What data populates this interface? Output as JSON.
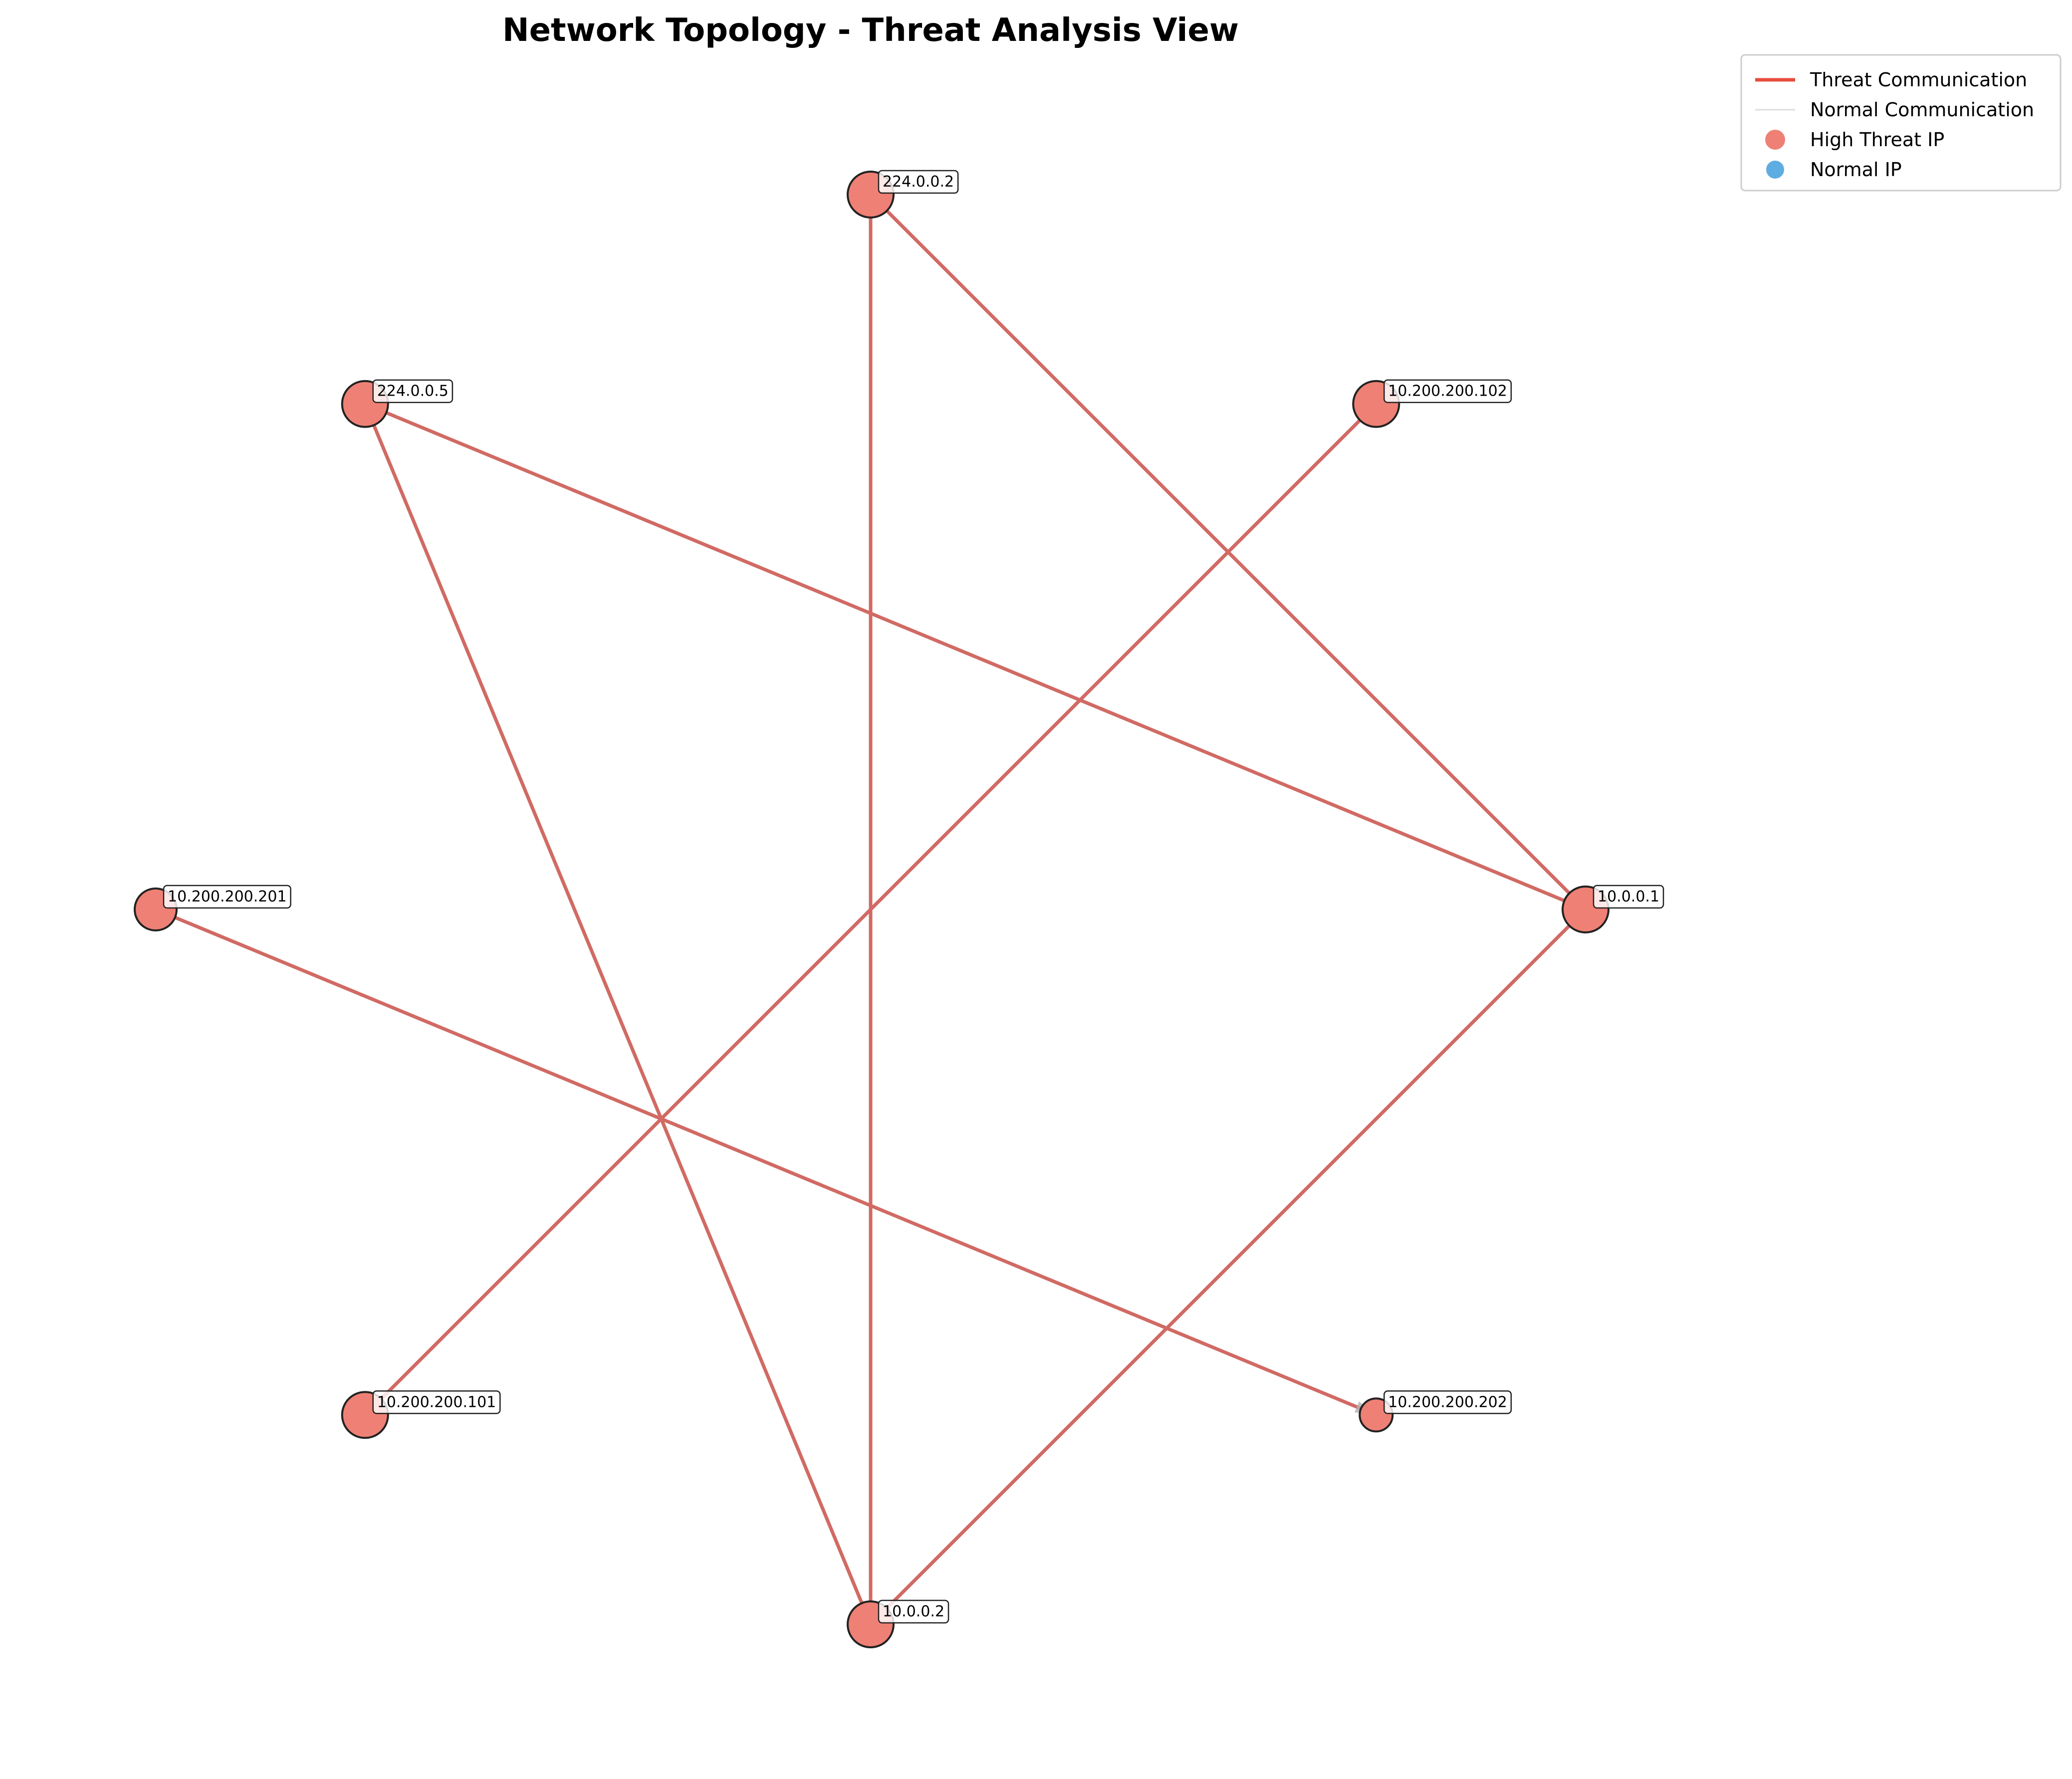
{
  "title": "Network Topology - Threat Analysis View",
  "colors": {
    "threat": "#e74c3c",
    "threat_edge": "#d16a64",
    "normal_edge": "#dddddd",
    "high_threat_node": "#ef8075",
    "normal_node": "#5dade2",
    "node_outline": "#222222"
  },
  "legend": {
    "placement": "top-right",
    "entries": [
      {
        "label": "Threat Communication",
        "kind": "line",
        "color": "#e74c3c"
      },
      {
        "label": "Normal Communication",
        "kind": "line",
        "color": "#dddddd"
      },
      {
        "label": "High Threat IP",
        "kind": "marker",
        "color": "#ef8075"
      },
      {
        "label": "Normal IP",
        "kind": "marker",
        "color": "#5dade2"
      }
    ]
  },
  "nodes": [
    {
      "id": "224.0.0.2",
      "label": "224.0.0.2",
      "type": "high-threat"
    },
    {
      "id": "224.0.0.5",
      "label": "224.0.0.5",
      "type": "high-threat"
    },
    {
      "id": "10.200.200.102",
      "label": "10.200.200.102",
      "type": "high-threat"
    },
    {
      "id": "10.200.200.201",
      "label": "10.200.200.201",
      "type": "high-threat"
    },
    {
      "id": "10.0.0.1",
      "label": "10.0.0.1",
      "type": "high-threat"
    },
    {
      "id": "10.200.200.101",
      "label": "10.200.200.101",
      "type": "high-threat"
    },
    {
      "id": "10.200.200.202",
      "label": "10.200.200.202",
      "type": "high-threat"
    },
    {
      "id": "10.0.0.2",
      "label": "10.0.0.2",
      "type": "high-threat"
    }
  ],
  "edges": [
    {
      "source": "224.0.0.2",
      "target": "10.0.0.1",
      "type": "threat"
    },
    {
      "source": "224.0.0.2",
      "target": "10.0.0.2",
      "type": "threat"
    },
    {
      "source": "224.0.0.5",
      "target": "10.0.0.1",
      "type": "threat"
    },
    {
      "source": "224.0.0.5",
      "target": "10.0.0.2",
      "type": "threat"
    },
    {
      "source": "10.200.200.102",
      "target": "10.200.200.101",
      "type": "threat"
    },
    {
      "source": "10.0.0.1",
      "target": "10.0.0.2",
      "type": "threat"
    },
    {
      "source": "10.200.200.201",
      "target": "10.200.200.202",
      "type": "threat"
    }
  ]
}
